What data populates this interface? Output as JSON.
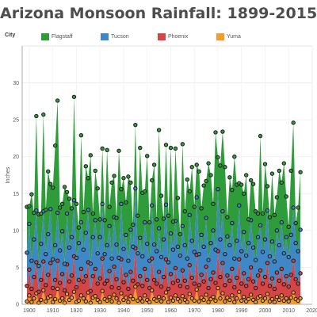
{
  "title": "Arizona Monsoon Rainfall: 1899-2015",
  "legend": {
    "label": "City",
    "items": [
      {
        "name": "Flagstaff",
        "color": "#2e9c3a"
      },
      {
        "name": "Tucson",
        "color": "#3f88c5"
      },
      {
        "name": "Phoenix",
        "color": "#d64545"
      },
      {
        "name": "Yuma",
        "color": "#f39c2a"
      }
    ]
  },
  "chart_data": {
    "type": "area",
    "stacked": true,
    "xlabel": "",
    "ylabel": "Inches",
    "xlim": [
      1897,
      2020
    ],
    "ylim": [
      0,
      35
    ],
    "xticks": [
      1900,
      1910,
      1920,
      1930,
      1940,
      1950,
      1960,
      1970,
      1980,
      1990,
      2000,
      2010,
      2020
    ],
    "yticks": [
      0,
      5,
      10,
      15,
      20,
      25,
      30
    ],
    "grid": true,
    "markers": "circle",
    "x_start": 1899,
    "x_end": 2015,
    "series": [
      {
        "name": "Yuma",
        "color": "#f39c2a",
        "values": [
          0.4,
          1.2,
          0.3,
          0.8,
          1.5,
          0.2,
          0.6,
          1.9,
          0.4,
          0.9,
          1.1,
          0.3,
          0.7,
          2.1,
          0.5,
          0.8,
          0.2,
          1.4,
          0.6,
          0.9,
          1.7,
          0.3,
          0.5,
          1.2,
          0.8,
          0.4,
          1.6,
          0.2,
          0.9,
          1.1,
          0.6,
          0.3,
          1.8,
          0.7,
          0.5,
          1.0,
          0.4,
          1.3,
          0.8,
          0.2,
          1.5,
          0.6,
          0.9,
          0.3,
          1.1,
          0.7,
          2.4,
          0.5,
          0.8,
          0.4,
          1.2,
          0.6,
          0.3,
          1.9,
          0.7,
          0.5,
          1.0,
          0.4,
          0.8,
          1.6,
          0.3,
          0.9,
          0.5,
          1.2,
          0.7,
          0.4,
          1.1,
          0.6,
          0.3,
          1.4,
          0.8,
          0.5,
          2.0,
          0.4,
          0.9,
          0.6,
          1.3,
          0.3,
          0.7,
          1.0,
          0.5,
          2.2,
          0.8,
          1.5,
          0.4,
          0.9,
          0.6,
          1.2,
          0.3,
          0.8,
          1.7,
          0.5,
          1.0,
          0.4,
          0.7,
          1.3,
          0.6,
          0.3,
          0.9,
          1.1,
          0.5,
          0.8,
          1.4,
          0.4,
          0.7,
          0.3,
          1.0,
          0.6,
          1.2,
          0.5,
          0.8,
          0.4,
          0.9,
          1.6,
          0.7,
          0.5,
          0.8
        ]
      },
      {
        "name": "Phoenix",
        "color": "#d64545",
        "values": [
          2.1,
          3.5,
          1.8,
          2.9,
          4.2,
          1.5,
          2.7,
          3.9,
          2.2,
          3.1,
          4.5,
          1.9,
          2.6,
          3.8,
          2.4,
          3.3,
          1.7,
          4.0,
          2.5,
          3.0,
          4.8,
          2.0,
          2.8,
          3.6,
          2.3,
          3.4,
          4.1,
          1.6,
          2.9,
          3.7,
          2.2,
          3.2,
          4.4,
          2.1,
          2.7,
          3.5,
          1.9,
          3.8,
          2.6,
          2.0,
          4.6,
          2.4,
          3.1,
          1.8,
          3.3,
          2.5,
          5.2,
          2.2,
          3.0,
          2.1,
          3.6,
          2.7,
          1.9,
          4.3,
          2.6,
          2.3,
          3.4,
          2.0,
          2.9,
          4.5,
          1.8,
          3.2,
          2.4,
          3.7,
          2.5,
          2.1,
          3.5,
          2.6,
          2.0,
          3.9,
          2.8,
          2.3,
          4.7,
          2.2,
          3.1,
          2.5,
          3.8,
          1.9,
          2.7,
          3.3,
          2.4,
          5.0,
          2.9,
          4.1,
          2.2,
          3.0,
          2.6,
          3.6,
          2.0,
          2.8,
          4.4,
          2.3,
          3.2,
          2.1,
          2.7,
          3.7,
          2.5,
          1.9,
          3.0,
          3.5,
          2.3,
          2.9,
          4.2,
          2.1,
          2.8,
          1.8,
          3.3,
          2.6,
          3.6,
          2.2,
          3.0,
          2.0,
          3.1,
          4.3,
          2.7,
          2.3,
          3.4
        ]
      },
      {
        "name": "Tucson",
        "color": "#3f88c5",
        "values": [
          4.5,
          6.2,
          3.8,
          5.1,
          7.0,
          3.5,
          4.9,
          6.8,
          4.2,
          5.5,
          7.3,
          3.9,
          4.7,
          6.5,
          4.4,
          5.8,
          3.6,
          6.9,
          4.6,
          5.2,
          7.6,
          4.0,
          5.0,
          6.3,
          4.3,
          5.9,
          7.1,
          3.7,
          5.3,
          6.6,
          4.1,
          5.6,
          7.4,
          4.0,
          4.8,
          6.1,
          3.9,
          6.7,
          4.7,
          4.1,
          7.5,
          4.5,
          5.4,
          3.8,
          5.7,
          4.6,
          8.1,
          4.2,
          5.2,
          4.0,
          6.3,
          4.9,
          3.7,
          7.2,
          4.8,
          4.4,
          5.9,
          4.0,
          5.1,
          7.4,
          3.6,
          5.5,
          4.5,
          6.4,
          4.6,
          4.1,
          6.0,
          4.8,
          3.9,
          6.8,
          5.0,
          4.3,
          7.8,
          4.2,
          5.4,
          4.7,
          6.6,
          3.8,
          4.9,
          5.7,
          4.5,
          8.4,
          5.1,
          7.0,
          4.2,
          5.3,
          4.8,
          6.2,
          3.9,
          5.0,
          7.3,
          4.4,
          5.6,
          4.1,
          4.9,
          6.4,
          4.6,
          3.8,
          5.2,
          6.1,
          4.3,
          5.1,
          7.1,
          4.0,
          5.0,
          3.7,
          5.7,
          4.8,
          6.3,
          4.2,
          5.3,
          4.0,
          5.4,
          7.2,
          4.9,
          4.4,
          5.9
        ]
      },
      {
        "name": "Flagstaff",
        "color": "#2e9c3a",
        "values": [
          6.2,
          2.4,
          9.0,
          3.6,
          12.8,
          7.0,
          4.1,
          13.1,
          6.0,
          8.5,
          3.4,
          9.7,
          13.5,
          15.2,
          5.8,
          3.7,
          10.4,
          2.9,
          6.6,
          3.9,
          14.0,
          7.3,
          2.1,
          11.8,
          5.1,
          9.0,
          4.3,
          14.7,
          3.2,
          6.7,
          8.8,
          2.4,
          7.5,
          4.6,
          12.9,
          2.6,
          10.3,
          5.6,
          3.6,
          14.5,
          2.0,
          9.6,
          4.4,
          11.4,
          6.4,
          3.0,
          8.6,
          5.1,
          12.2,
          8.6,
          4.2,
          11.9,
          5.2,
          3.4,
          10.8,
          4.3,
          13.3,
          8.3,
          2.8,
          8.1,
          6.3,
          11.6,
          3.8,
          9.8,
          6.6,
          2.9,
          11.1,
          4.6,
          10.7,
          3.2,
          10.0,
          6.1,
          4.4,
          11.2,
          3.6,
          8.3,
          5.0,
          13.1,
          9.2,
          3.6,
          15.9,
          4.3,
          10.0,
          10.8,
          11.8,
          2.6,
          9.2,
          4.5,
          13.8,
          7.6,
          3.0,
          9.0,
          5.2,
          10.9,
          3.2,
          5.4,
          8.6,
          6.6,
          3.2,
          12.1,
          5.2,
          10.2,
          3.3,
          5.3,
          9.2,
          6.3,
          4.5,
          10.1,
          5.4,
          12.2,
          5.5,
          4.1,
          8.7,
          11.5,
          2.7,
          5.9,
          7.8
        ]
      }
    ]
  }
}
